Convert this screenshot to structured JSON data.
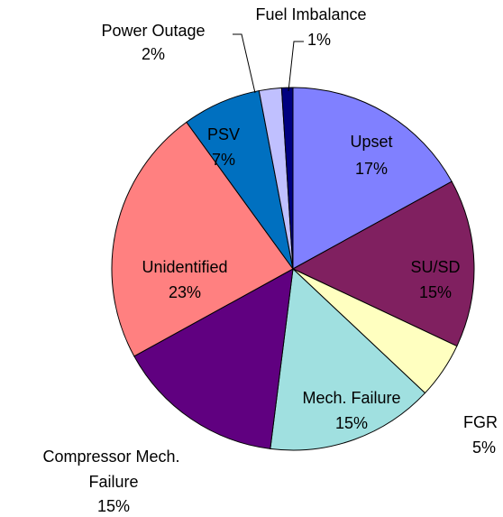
{
  "chart_data": {
    "type": "pie",
    "categories": [
      "Upset",
      "SU/SD",
      "FGR",
      "Mech. Failure",
      "Compressor Mech. Failure",
      "Unidentified",
      "PSV",
      "Power Outage",
      "Fuel Imbalance"
    ],
    "values": [
      17,
      15,
      5,
      15,
      15,
      23,
      7,
      2,
      1
    ],
    "value_labels": [
      "17%",
      "15%",
      "5%",
      "15%",
      "15%",
      "23%",
      "7%",
      "2%",
      "1%"
    ],
    "colors": [
      "#8080ff",
      "#802060",
      "#ffffc0",
      "#a0e0e0",
      "#600080",
      "#ff8080",
      "#0070c0",
      "#c0c0ff",
      "#000080"
    ]
  }
}
